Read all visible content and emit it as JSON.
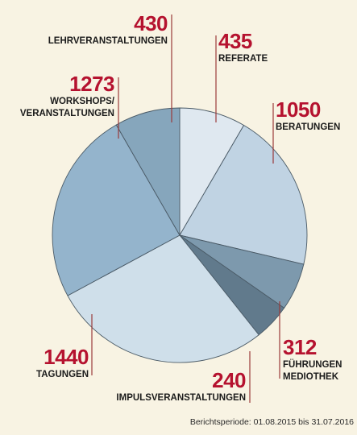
{
  "chart_data": {
    "type": "pie",
    "slices": [
      {
        "value": "435",
        "labels": [
          "REFERATE"
        ],
        "color": "#dfe8f0",
        "num": 435
      },
      {
        "value": "1050",
        "labels": [
          "BERATUNGEN"
        ],
        "color": "#c0d3e3",
        "num": 1050
      },
      {
        "value": "312",
        "labels": [
          "FÜHRUNGEN",
          "MEDIOTHEK"
        ],
        "color": "#7d99ad",
        "num": 312
      },
      {
        "value": "240",
        "labels": [
          "IMPULSVERANSTALTUNGEN"
        ],
        "color": "#617a8c",
        "num": 240
      },
      {
        "value": "1440",
        "labels": [
          "TAGUNGEN"
        ],
        "color": "#cfdfea",
        "num": 1440
      },
      {
        "value": "1273",
        "labels": [
          "WORKSHOPS/",
          "VERANSTALTUNGEN"
        ],
        "color": "#94b4cc",
        "num": 1273
      },
      {
        "value": "430",
        "labels": [
          "LEHRVERANSTALTUNGEN"
        ],
        "color": "#86a6bc",
        "num": 430
      }
    ]
  },
  "footnote": "Berichtsperiode: 01.08.2015 bis 31.07.2016"
}
